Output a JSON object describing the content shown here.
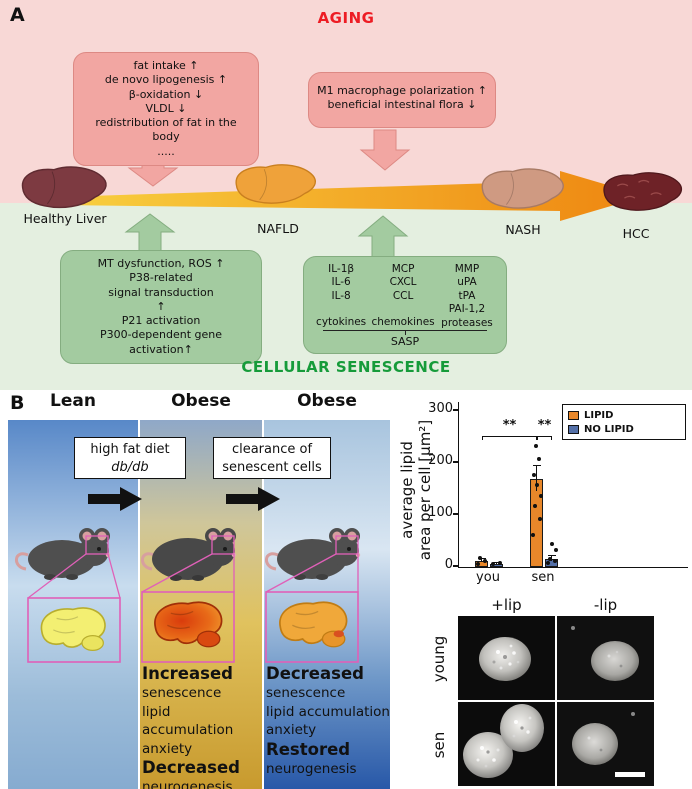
{
  "figure": {
    "panelA": {
      "label": "A",
      "title": "AGING",
      "title_color": "#ED1C24",
      "subtitle": "CELLULAR SENESCENCE",
      "subtitle_color": "#169B3A",
      "aging_factors_metabolic": {
        "lines": [
          "fat intake ↑",
          "de novo lipogenesis ↑",
          "β-oxidation ↓",
          "VLDL ↓",
          "redistribution of fat in the body",
          "....."
        ]
      },
      "aging_factors_inflammatory": {
        "lines": [
          "M1 macrophage polarization ↑",
          "beneficial intestinal flora ↓"
        ]
      },
      "stages": [
        {
          "name": "Healthy Liver"
        },
        {
          "name": "NAFLD"
        },
        {
          "name": "NASH"
        },
        {
          "name": "HCC"
        }
      ],
      "senescence_mechanisms": {
        "lines": [
          "MT dysfunction, ROS ↑",
          "P38-related",
          "signal transduction",
          "↑",
          "P21 activation",
          "P300-dependent gene activation↑"
        ]
      },
      "sasp_box": {
        "columns": [
          {
            "items": [
              "IL-1β",
              "IL-6",
              "IL-8"
            ],
            "label": "cytokines"
          },
          {
            "items": [
              "MCP",
              "CXCL",
              "CCL"
            ],
            "label": "chemokines"
          },
          {
            "items": [
              "MMP",
              "uPA",
              "tPA",
              "PAI-1,2"
            ],
            "label": "proteases"
          }
        ],
        "footer": "SASP"
      }
    },
    "panelB": {
      "label": "B",
      "column_headers": [
        "Lean",
        "Obese",
        "Obese"
      ],
      "intervention1": {
        "lines": [
          "high fat diet",
          "db/db"
        ]
      },
      "intervention2": {
        "lines": [
          "clearance of",
          "senescent cells"
        ]
      },
      "obese_outcomes": [
        "Increased",
        "senescence",
        "lipid accumulation",
        "anxiety",
        "Decreased",
        "neurogenesis"
      ],
      "cleared_outcomes": [
        "Decreased",
        "senescence",
        "lipid accumulation",
        "anxiety",
        "Restored",
        "neurogenesis"
      ],
      "microscopy": {
        "col_headers": [
          "+lip",
          "-lip"
        ],
        "row_labels": [
          "young",
          "sen"
        ]
      }
    }
  },
  "chart_data": {
    "type": "bar",
    "title": "",
    "ylabel_lines": [
      "average lipid",
      "area per cell [μm²]"
    ],
    "ylim": [
      0,
      300
    ],
    "yticks": [
      0,
      100,
      200,
      300
    ],
    "categories": [
      "you",
      "sen"
    ],
    "series": [
      {
        "name": "LIPID",
        "color": "#E8872A",
        "values": [
          12,
          170
        ],
        "errors": [
          4,
          25
        ],
        "points": {
          "you": [
            4,
            9,
            15
          ],
          "sen": [
            60,
            90,
            115,
            135,
            155,
            175,
            205,
            230
          ]
        }
      },
      {
        "name": "NO LIPID",
        "color": "#5470A8",
        "values": [
          6,
          15
        ],
        "errors": [
          2,
          6
        ],
        "points": {
          "you": [
            3,
            6
          ],
          "sen": [
            5,
            9,
            14,
            30,
            42
          ]
        }
      }
    ],
    "significance": [
      {
        "label": "**",
        "from": "you-LIPID",
        "to": "sen-LIPID"
      },
      {
        "label": "**",
        "from": "sen-LIPID",
        "to": "sen-NOLIPID"
      }
    ],
    "legend_position": "top-right",
    "grid": false
  }
}
